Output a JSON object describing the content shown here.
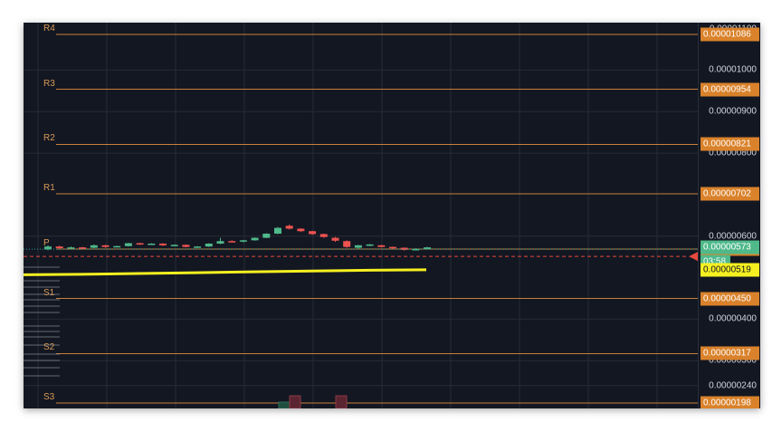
{
  "colors": {
    "background": "#131722",
    "grid": "#262b36",
    "level": "#c87f3a",
    "level_text": "#d89a57",
    "tag": "#d9822b",
    "up": "#26a69a",
    "up_body": "#4fb98a",
    "down": "#ef5350",
    "ma": "#f5f020",
    "price_tag": "#4fb98a",
    "ma_tag": "#f5f020",
    "countdown_bg": "#4fb98a",
    "bid_marker": "#e8493f"
  },
  "price_axis": {
    "ticks": [
      "0.00001100",
      "0.00001000",
      "0.00000900",
      "0.00000800",
      "0.00000600",
      "0.00000400",
      "0.00000300",
      "0.00000240"
    ]
  },
  "levels": [
    {
      "name": "R4",
      "label": "R4",
      "value": "0.00001086"
    },
    {
      "name": "R3",
      "label": "R3",
      "value": "0.00000954"
    },
    {
      "name": "R2",
      "label": "R2",
      "value": "0.00000821"
    },
    {
      "name": "R1",
      "label": "R1",
      "value": "0.00000702"
    },
    {
      "name": "P",
      "label": "P",
      "value": "0.00000569"
    },
    {
      "name": "S1",
      "label": "S1",
      "value": "0.00000450"
    },
    {
      "name": "S2",
      "label": "S2",
      "value": "0.00000317"
    },
    {
      "name": "S3",
      "label": "S3",
      "value": "0.00000198"
    }
  ],
  "last_price": {
    "value": "0.00000573",
    "countdown": "03:58"
  },
  "ma_price": {
    "value": "0.00000519"
  },
  "chart_data": {
    "type": "candlestick",
    "candles": [
      {
        "o": 568,
        "c": 575,
        "h": 578,
        "l": 566
      },
      {
        "o": 575,
        "c": 571,
        "h": 577,
        "l": 569
      },
      {
        "o": 571,
        "c": 573,
        "h": 575,
        "l": 570
      },
      {
        "o": 573,
        "c": 572,
        "h": 574,
        "l": 570
      },
      {
        "o": 572,
        "c": 578,
        "h": 580,
        "l": 571
      },
      {
        "o": 578,
        "c": 574,
        "h": 579,
        "l": 572
      },
      {
        "o": 574,
        "c": 576,
        "h": 577,
        "l": 573
      },
      {
        "o": 576,
        "c": 583,
        "h": 584,
        "l": 575
      },
      {
        "o": 583,
        "c": 580,
        "h": 584,
        "l": 579
      },
      {
        "o": 580,
        "c": 582,
        "h": 583,
        "l": 579
      },
      {
        "o": 582,
        "c": 578,
        "h": 583,
        "l": 576
      },
      {
        "o": 578,
        "c": 579,
        "h": 580,
        "l": 576
      },
      {
        "o": 579,
        "c": 574,
        "h": 580,
        "l": 573
      },
      {
        "o": 574,
        "c": 575,
        "h": 576,
        "l": 572
      },
      {
        "o": 575,
        "c": 582,
        "h": 583,
        "l": 574
      },
      {
        "o": 582,
        "c": 588,
        "h": 596,
        "l": 581
      },
      {
        "o": 588,
        "c": 587,
        "h": 590,
        "l": 585
      },
      {
        "o": 587,
        "c": 590,
        "h": 591,
        "l": 585
      },
      {
        "o": 590,
        "c": 596,
        "h": 597,
        "l": 589
      },
      {
        "o": 596,
        "c": 606,
        "h": 607,
        "l": 595
      },
      {
        "o": 606,
        "c": 620,
        "h": 622,
        "l": 605
      },
      {
        "o": 625,
        "c": 618,
        "h": 628,
        "l": 616
      },
      {
        "o": 618,
        "c": 612,
        "h": 619,
        "l": 610
      },
      {
        "o": 612,
        "c": 605,
        "h": 613,
        "l": 603
      },
      {
        "o": 605,
        "c": 598,
        "h": 606,
        "l": 596
      },
      {
        "o": 596,
        "c": 589,
        "h": 598,
        "l": 586
      },
      {
        "o": 588,
        "c": 574,
        "h": 590,
        "l": 572
      },
      {
        "o": 572,
        "c": 578,
        "h": 579,
        "l": 570
      },
      {
        "o": 578,
        "c": 580,
        "h": 581,
        "l": 576
      },
      {
        "o": 578,
        "c": 574,
        "h": 579,
        "l": 573
      },
      {
        "o": 574,
        "c": 572,
        "h": 575,
        "l": 570
      },
      {
        "o": 572,
        "c": 567,
        "h": 573,
        "l": 565
      },
      {
        "o": 567,
        "c": 569,
        "h": 571,
        "l": 566
      },
      {
        "o": 569,
        "c": 573,
        "h": 574,
        "l": 568
      }
    ],
    "ma": [
      507,
      508,
      510,
      512,
      514,
      516,
      518,
      519
    ],
    "volume": [
      {
        "height": 0.45,
        "dir": "up"
      },
      {
        "height": 0.85,
        "dir": "down"
      },
      {
        "height": 0.9,
        "dir": "down"
      }
    ]
  }
}
